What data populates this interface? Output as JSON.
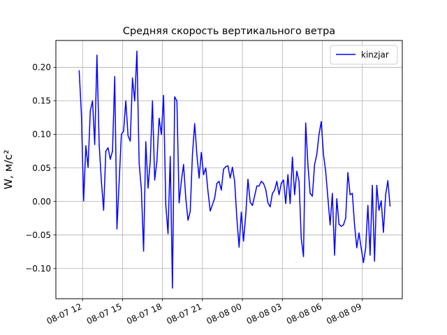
{
  "chart_data": {
    "type": "line",
    "title": "Средняя скорость вертикального ветра",
    "xlabel": "",
    "ylabel": "W, м/с²",
    "grid": true,
    "legend": {
      "position": "top-right",
      "entries": [
        "kinzjar"
      ]
    },
    "xlim": [
      "2025-08-07T10:00",
      "2025-08-08T12:00"
    ],
    "ylim": [
      -0.145,
      0.24
    ],
    "xticks": [
      {
        "t": "2025-08-07T12:00",
        "label": "08-07 12"
      },
      {
        "t": "2025-08-07T15:00",
        "label": "08-07 15"
      },
      {
        "t": "2025-08-07T18:00",
        "label": "08-07 18"
      },
      {
        "t": "2025-08-07T21:00",
        "label": "08-07 21"
      },
      {
        "t": "2025-08-08T00:00",
        "label": "08-08 00"
      },
      {
        "t": "2025-08-08T03:00",
        "label": "08-08 03"
      },
      {
        "t": "2025-08-08T06:00",
        "label": "08-08 06"
      },
      {
        "t": "2025-08-08T09:00",
        "label": "08-08 09"
      }
    ],
    "yticks": [
      {
        "v": 0.2,
        "label": "0.20"
      },
      {
        "v": 0.15,
        "label": "0.15"
      },
      {
        "v": 0.1,
        "label": "0.10"
      },
      {
        "v": 0.05,
        "label": "0.05"
      },
      {
        "v": 0.0,
        "label": "0.00"
      },
      {
        "v": -0.05,
        "label": "−0.05"
      },
      {
        "v": -0.1,
        "label": "−0.10"
      }
    ],
    "series": [
      {
        "name": "kinzjar",
        "color": "#0000ff",
        "points": [
          [
            "2025-08-07T11:45",
            0.195
          ],
          [
            "2025-08-07T11:55",
            0.13
          ],
          [
            "2025-08-07T12:05",
            0.001
          ],
          [
            "2025-08-07T12:15",
            0.083
          ],
          [
            "2025-08-07T12:25",
            0.051
          ],
          [
            "2025-08-07T12:35",
            0.135
          ],
          [
            "2025-08-07T12:45",
            0.15
          ],
          [
            "2025-08-07T12:55",
            0.085
          ],
          [
            "2025-08-07T13:05",
            0.218
          ],
          [
            "2025-08-07T13:15",
            0.085
          ],
          [
            "2025-08-07T13:25",
            0.03
          ],
          [
            "2025-08-07T13:35",
            -0.013
          ],
          [
            "2025-08-07T13:45",
            0.075
          ],
          [
            "2025-08-07T13:55",
            0.08
          ],
          [
            "2025-08-07T14:05",
            0.063
          ],
          [
            "2025-08-07T14:15",
            0.075
          ],
          [
            "2025-08-07T14:25",
            0.186
          ],
          [
            "2025-08-07T14:35",
            -0.041
          ],
          [
            "2025-08-07T14:45",
            0.03
          ],
          [
            "2025-08-07T14:55",
            0.1
          ],
          [
            "2025-08-07T15:05",
            0.105
          ],
          [
            "2025-08-07T15:15",
            0.15
          ],
          [
            "2025-08-07T15:25",
            0.098
          ],
          [
            "2025-08-07T15:35",
            0.09
          ],
          [
            "2025-08-07T15:45",
            0.184
          ],
          [
            "2025-08-07T15:55",
            0.15
          ],
          [
            "2025-08-07T16:05",
            0.224
          ],
          [
            "2025-08-07T16:15",
            0.057
          ],
          [
            "2025-08-07T16:25",
            0.018
          ],
          [
            "2025-08-07T16:35",
            -0.074
          ],
          [
            "2025-08-07T16:45",
            0.089
          ],
          [
            "2025-08-07T16:55",
            0.02
          ],
          [
            "2025-08-07T17:05",
            0.06
          ],
          [
            "2025-08-07T17:15",
            0.15
          ],
          [
            "2025-08-07T17:25",
            0.032
          ],
          [
            "2025-08-07T17:35",
            0.06
          ],
          [
            "2025-08-07T17:45",
            0.124
          ],
          [
            "2025-08-07T17:55",
            0.1
          ],
          [
            "2025-08-07T18:05",
            0.158
          ],
          [
            "2025-08-07T18:15",
            -0.005
          ],
          [
            "2025-08-07T18:25",
            -0.048
          ],
          [
            "2025-08-07T18:35",
            0.067
          ],
          [
            "2025-08-07T18:45",
            -0.129
          ],
          [
            "2025-08-07T18:55",
            0.156
          ],
          [
            "2025-08-07T19:05",
            0.15
          ],
          [
            "2025-08-07T19:15",
            -0.002
          ],
          [
            "2025-08-07T19:25",
            0.03
          ],
          [
            "2025-08-07T19:35",
            0.055
          ],
          [
            "2025-08-07T19:45",
            0.005
          ],
          [
            "2025-08-07T19:55",
            -0.028
          ],
          [
            "2025-08-07T20:05",
            -0.015
          ],
          [
            "2025-08-07T20:15",
            0.07
          ],
          [
            "2025-08-07T20:25",
            0.116
          ],
          [
            "2025-08-07T20:35",
            0.07
          ],
          [
            "2025-08-07T20:45",
            0.035
          ],
          [
            "2025-08-07T20:55",
            0.073
          ],
          [
            "2025-08-07T21:05",
            0.04
          ],
          [
            "2025-08-07T21:15",
            0.05
          ],
          [
            "2025-08-07T21:25",
            0.015
          ],
          [
            "2025-08-07T21:35",
            -0.014
          ],
          [
            "2025-08-07T21:45",
            -0.005
          ],
          [
            "2025-08-07T21:55",
            0.005
          ],
          [
            "2025-08-07T22:05",
            0.027
          ],
          [
            "2025-08-07T22:15",
            0.03
          ],
          [
            "2025-08-07T22:25",
            0.017
          ],
          [
            "2025-08-07T22:35",
            0.048
          ],
          [
            "2025-08-07T22:45",
            0.052
          ],
          [
            "2025-08-07T22:55",
            0.053
          ],
          [
            "2025-08-07T23:05",
            0.035
          ],
          [
            "2025-08-07T23:15",
            0.051
          ],
          [
            "2025-08-07T23:25",
            0.03
          ],
          [
            "2025-08-07T23:35",
            -0.025
          ],
          [
            "2025-08-07T23:45",
            -0.068
          ],
          [
            "2025-08-07T23:55",
            -0.016
          ],
          [
            "2025-08-08T00:05",
            -0.059
          ],
          [
            "2025-08-08T00:15",
            -0.02
          ],
          [
            "2025-08-08T00:25",
            0.033
          ],
          [
            "2025-08-08T00:35",
            -0.001
          ],
          [
            "2025-08-08T00:45",
            -0.006
          ],
          [
            "2025-08-08T00:55",
            0.008
          ],
          [
            "2025-08-08T01:05",
            0.023
          ],
          [
            "2025-08-08T01:15",
            0.023
          ],
          [
            "2025-08-08T01:25",
            0.03
          ],
          [
            "2025-08-08T01:35",
            0.027
          ],
          [
            "2025-08-08T01:45",
            0.018
          ],
          [
            "2025-08-08T01:55",
            -0.002
          ],
          [
            "2025-08-08T02:05",
            -0.008
          ],
          [
            "2025-08-08T02:15",
            0.012
          ],
          [
            "2025-08-08T02:25",
            0.017
          ],
          [
            "2025-08-08T02:35",
            0.03
          ],
          [
            "2025-08-08T02:45",
            0.01
          ],
          [
            "2025-08-08T02:55",
            0.027
          ],
          [
            "2025-08-08T03:05",
            0.032
          ],
          [
            "2025-08-08T03:15",
            -0.003
          ],
          [
            "2025-08-08T03:25",
            0.04
          ],
          [
            "2025-08-08T03:35",
            -0.003
          ],
          [
            "2025-08-08T03:45",
            0.066
          ],
          [
            "2025-08-08T03:55",
            0.01
          ],
          [
            "2025-08-08T04:05",
            0.045
          ],
          [
            "2025-08-08T04:15",
            0.03
          ],
          [
            "2025-08-08T04:25",
            -0.055
          ],
          [
            "2025-08-08T04:35",
            -0.082
          ],
          [
            "2025-08-08T04:45",
            0.117
          ],
          [
            "2025-08-08T04:55",
            0.055
          ],
          [
            "2025-08-08T05:05",
            0.012
          ],
          [
            "2025-08-08T05:15",
            0.008
          ],
          [
            "2025-08-08T05:25",
            0.055
          ],
          [
            "2025-08-08T05:35",
            0.07
          ],
          [
            "2025-08-08T05:45",
            0.1
          ],
          [
            "2025-08-08T05:55",
            0.119
          ],
          [
            "2025-08-08T06:05",
            0.07
          ],
          [
            "2025-08-08T06:15",
            0.045
          ],
          [
            "2025-08-08T06:25",
            0.005
          ],
          [
            "2025-08-08T06:35",
            -0.035
          ],
          [
            "2025-08-08T06:45",
            0.012
          ],
          [
            "2025-08-08T06:55",
            -0.08
          ],
          [
            "2025-08-08T07:05",
            0.004
          ],
          [
            "2025-08-08T07:15",
            -0.034
          ],
          [
            "2025-08-08T07:25",
            -0.037
          ],
          [
            "2025-08-08T07:35",
            -0.035
          ],
          [
            "2025-08-08T07:45",
            -0.025
          ],
          [
            "2025-08-08T07:55",
            0.043
          ],
          [
            "2025-08-08T08:05",
            0.01
          ],
          [
            "2025-08-08T08:15",
            0.012
          ],
          [
            "2025-08-08T08:25",
            -0.035
          ],
          [
            "2025-08-08T08:35",
            -0.069
          ],
          [
            "2025-08-08T08:45",
            -0.047
          ],
          [
            "2025-08-08T08:55",
            -0.07
          ],
          [
            "2025-08-08T09:05",
            -0.091
          ],
          [
            "2025-08-08T09:15",
            -0.07
          ],
          [
            "2025-08-08T09:25",
            -0.006
          ],
          [
            "2025-08-08T09:35",
            -0.08
          ],
          [
            "2025-08-08T09:45",
            0.024
          ],
          [
            "2025-08-08T09:55",
            -0.089
          ],
          [
            "2025-08-08T10:05",
            0.024
          ],
          [
            "2025-08-08T10:15",
            -0.013
          ],
          [
            "2025-08-08T10:25",
            0.001
          ],
          [
            "2025-08-08T10:35",
            -0.046
          ],
          [
            "2025-08-08T10:45",
            0.01
          ],
          [
            "2025-08-08T10:55",
            0.031
          ],
          [
            "2025-08-08T11:05",
            -0.007
          ]
        ]
      }
    ]
  }
}
